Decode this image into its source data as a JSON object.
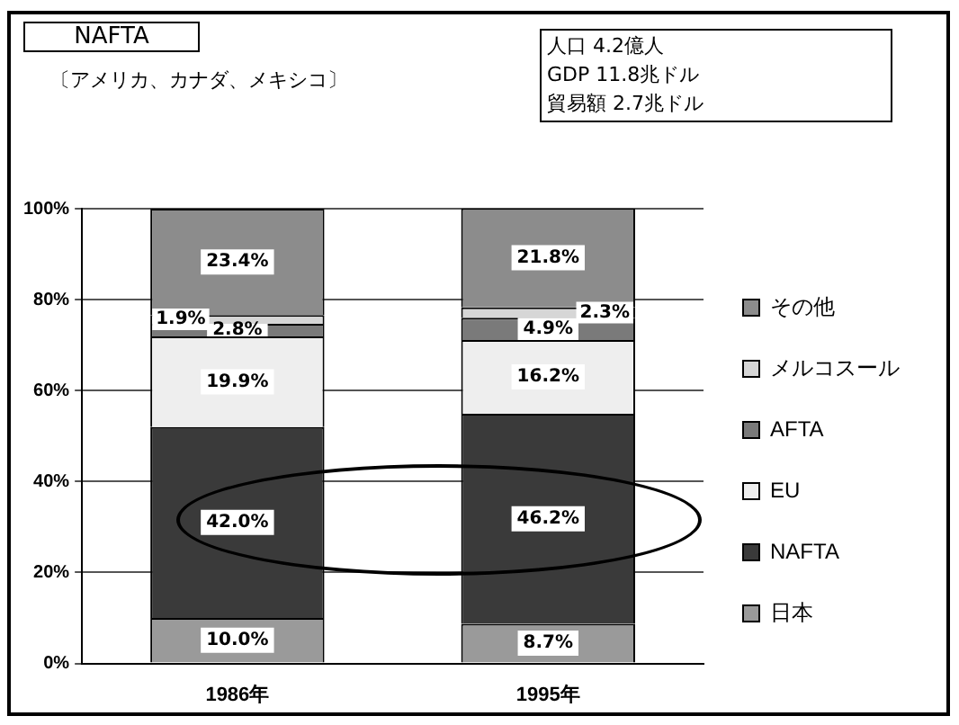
{
  "chart_data": {
    "type": "bar",
    "title": "NAFTA",
    "subtitle": "〔アメリカ、カナダ、メキシコ〕",
    "annotations": [
      "人口 4.2億人",
      "GDP 11.8兆ドル",
      "貿易額 2.7兆ドル"
    ],
    "categories": [
      "1986年",
      "1995年"
    ],
    "stacked": true,
    "series": [
      {
        "name": "日本",
        "color": "#9a9a9a",
        "values": [
          10.0,
          8.7
        ],
        "value_labels": [
          "10.0%",
          "8.7%"
        ]
      },
      {
        "name": "NAFTA",
        "color": "#3a3a3a",
        "values": [
          42.0,
          46.2
        ],
        "value_labels": [
          "42.0%",
          "46.2%"
        ]
      },
      {
        "name": "EU",
        "color": "#eeeeee",
        "values": [
          19.9,
          16.2
        ],
        "value_labels": [
          "19.9%",
          "16.2%"
        ]
      },
      {
        "name": "AFTA",
        "color": "#7a7a7a",
        "values": [
          2.8,
          4.9
        ],
        "value_labels": [
          "2.8%",
          "4.9%"
        ]
      },
      {
        "name": "メルコスール",
        "color": "#d6d6d6",
        "values": [
          1.9,
          2.3
        ],
        "value_labels": [
          "1.9%",
          "2.3%"
        ]
      },
      {
        "name": "その他",
        "color": "#8c8c8c",
        "values": [
          23.4,
          21.8
        ],
        "value_labels": [
          "23.4%",
          "21.8%"
        ]
      }
    ],
    "ylim": [
      0,
      100
    ],
    "yticks": [
      {
        "value": 0,
        "label": "0%"
      },
      {
        "value": 20,
        "label": "20%"
      },
      {
        "value": 40,
        "label": "40%"
      },
      {
        "value": 60,
        "label": "60%"
      },
      {
        "value": 80,
        "label": "80%"
      },
      {
        "value": 100,
        "label": "100%"
      }
    ],
    "grid": "y",
    "legend": "right"
  }
}
